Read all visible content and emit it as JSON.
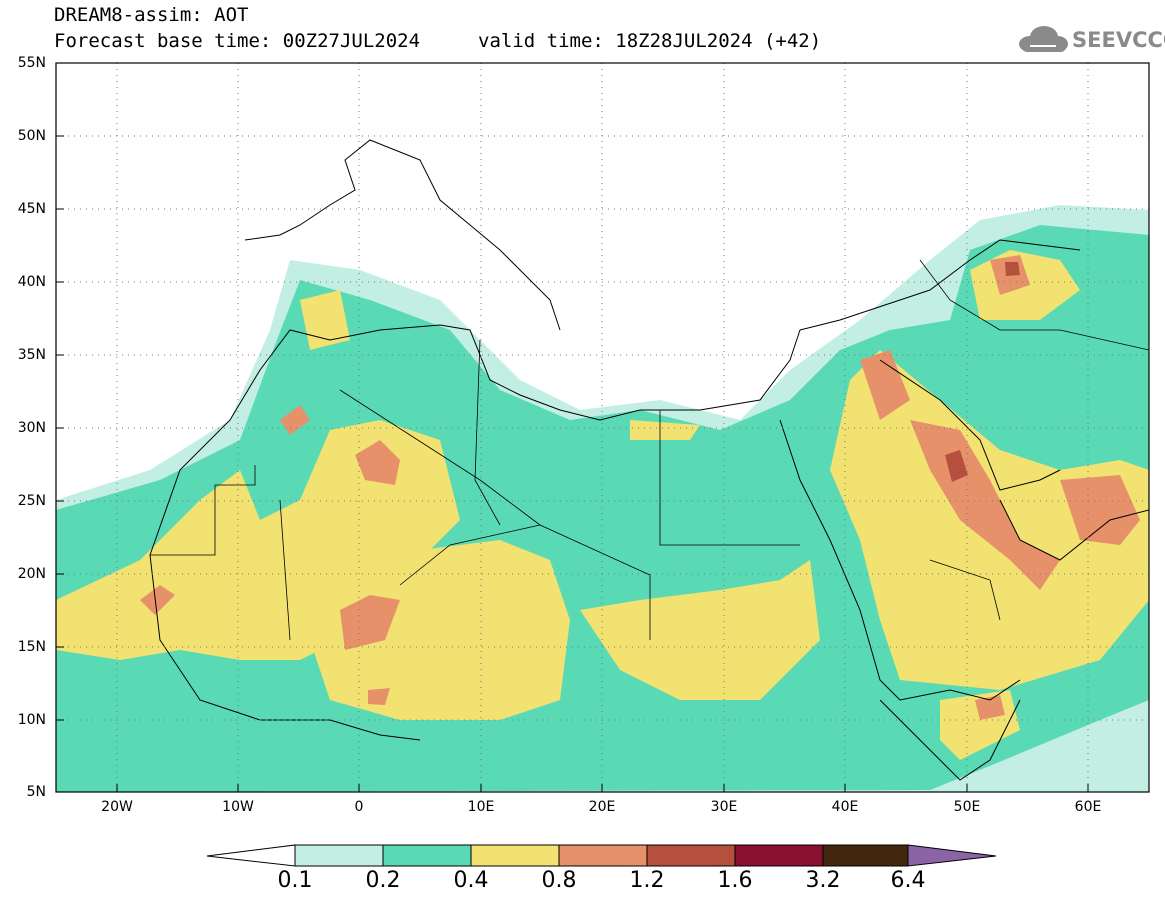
{
  "header": {
    "line1": "DREAM8-assim: AOT",
    "line2": "Forecast base time: 00Z27JUL2024",
    "valid": "valid time: 18Z28JUL2024 (+42)"
  },
  "logo": {
    "text": "SEEVCCC",
    "icon": "cloud-icon"
  },
  "map": {
    "lon_range": [
      -25,
      65
    ],
    "lat_range": [
      5,
      55
    ],
    "lat_labels": [
      "55N",
      "50N",
      "45N",
      "40N",
      "35N",
      "30N",
      "25N",
      "20N",
      "15N",
      "10N",
      "5N"
    ],
    "lon_labels": [
      "20W",
      "10W",
      "0",
      "10E",
      "20E",
      "30E",
      "40E",
      "50E",
      "60E"
    ],
    "grid": "dotted"
  },
  "colorbar": {
    "colors": [
      "#ffffff",
      "#c2eee4",
      "#5ad9b5",
      "#f1e272",
      "#e7916a",
      "#b54f3e",
      "#8a1030",
      "#43260e",
      "#8a64a6"
    ],
    "labels": [
      "0.1",
      "0.2",
      "0.4",
      "0.8",
      "1.2",
      "1.6",
      "3.2",
      "6.4"
    ]
  }
}
